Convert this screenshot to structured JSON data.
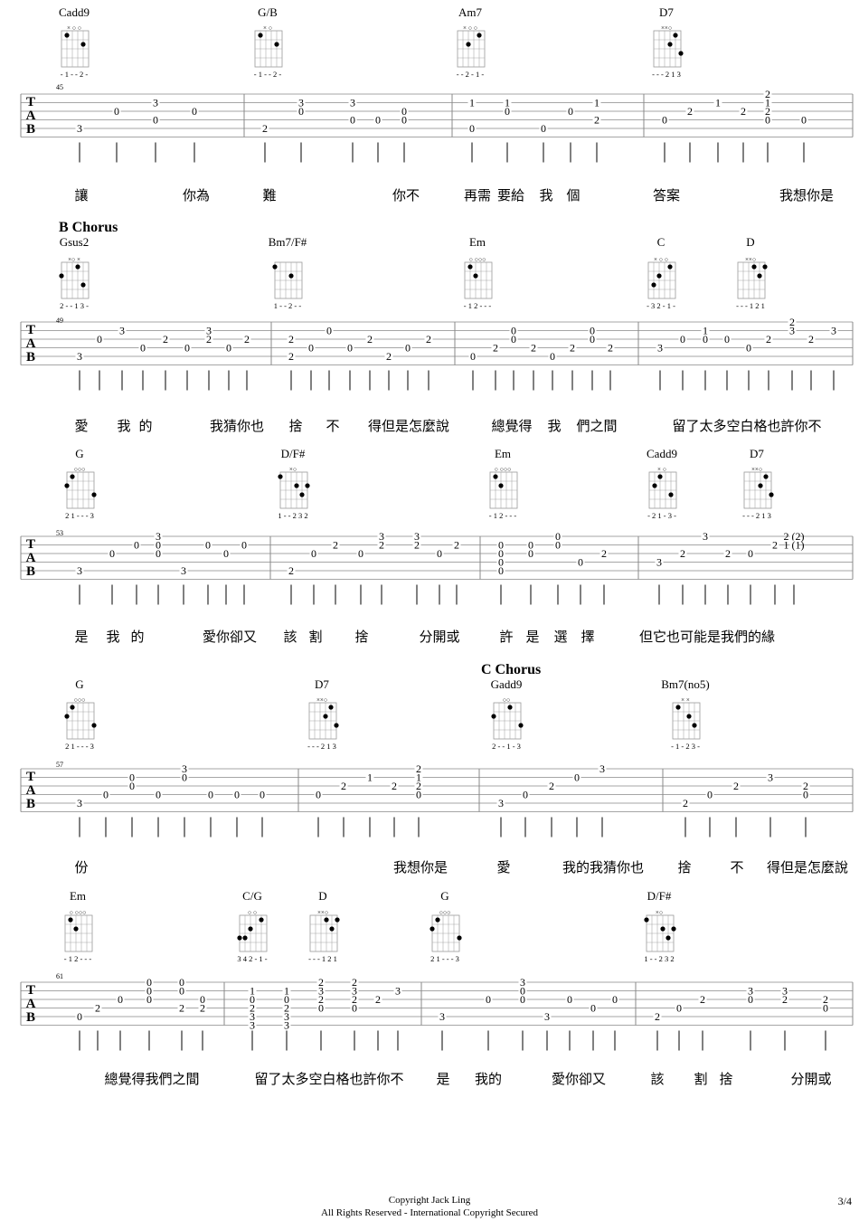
{
  "systems": [
    {
      "section": "",
      "measure_number": "45",
      "chords": [
        {
          "name": "Cadd9",
          "fingering": "- 1 - - 2 -",
          "top": "×   ○  ○"
        },
        {
          "name": "G/B",
          "fingering": "- 1 - - 2 -",
          "top": "×     ○"
        },
        {
          "name": "Am7",
          "fingering": "- - 2 - 1 -",
          "top": "×  ○   ○"
        },
        {
          "name": "D7",
          "fingering": "- - - 2 1 3",
          "top": "××○"
        }
      ],
      "lyrics": [
        "讓",
        "你為",
        "難",
        "你不",
        "再需",
        "要給",
        "我",
        "個",
        "答案",
        "我想你是"
      ],
      "tab": [
        {
          "s": 5,
          "v": "3"
        },
        {
          "s": 3,
          "v": "0"
        },
        {
          "s": 4,
          "v": "0"
        },
        {
          "s": 2,
          "v": "3"
        },
        {
          "s": 3,
          "v": "0"
        },
        {
          "s": 3,
          "v": "0"
        },
        {
          "s": 5,
          "v": "2"
        },
        {
          "s": 2,
          "v": "3"
        },
        {
          "s": 3,
          "v": "0"
        },
        {
          "s": 4,
          "v": "0"
        },
        {
          "s": 2,
          "v": "3"
        },
        {
          "s": 4,
          "v": "0"
        },
        {
          "s": 4,
          "v": "0"
        },
        {
          "s": 3,
          "v": "0"
        },
        {
          "s": 2,
          "v": "1"
        },
        {
          "s": 5,
          "v": "0"
        },
        {
          "s": 2,
          "v": "1"
        },
        {
          "s": 3,
          "v": "0"
        },
        {
          "s": 5,
          "v": "0"
        },
        {
          "s": 3,
          "v": "0"
        },
        {
          "s": 2,
          "v": "1"
        },
        {
          "s": 4,
          "v": "2"
        },
        {
          "s": 4,
          "v": "0"
        },
        {
          "s": 3,
          "v": "2"
        },
        {
          "s": 2,
          "v": "1"
        },
        {
          "s": 3,
          "v": "2"
        },
        {
          "s": 1,
          "v": "2"
        },
        {
          "s": 2,
          "v": "1"
        },
        {
          "s": 3,
          "v": "2"
        },
        {
          "s": 4,
          "v": "0"
        },
        {
          "s": 4,
          "v": "0"
        }
      ]
    },
    {
      "section": "B  Chorus",
      "measure_number": "49",
      "chords": [
        {
          "name": "Gsus2",
          "fingering": "2 - - 1 3 -",
          "top": "×○   ×"
        },
        {
          "name": "Bm7/F#",
          "fingering": "1 - - 2 - -",
          "top": ""
        },
        {
          "name": "Em",
          "fingering": "- 1 2 - - -",
          "top": "○     ○○○"
        },
        {
          "name": "C",
          "fingering": "- 3 2 - 1 -",
          "top": "×   ○  ○"
        },
        {
          "name": "D",
          "fingering": "- - - 1 2 1",
          "top": "××○"
        }
      ],
      "lyrics": [
        "愛",
        "我",
        "的",
        "我猜你也",
        "捨",
        "不",
        "得但是怎麼說",
        "總覺得",
        "我",
        "們之間",
        "留了太多空白格也許你不"
      ],
      "tab": [
        {
          "s": 5,
          "v": "3"
        },
        {
          "s": 2,
          "v": "3"
        },
        {
          "s": 3,
          "v": "0"
        },
        {
          "s": 4,
          "v": "0"
        },
        {
          "s": 3,
          "v": "0"
        },
        {
          "s": 3,
          "v": "2"
        },
        {
          "s": 4,
          "v": "0"
        },
        {
          "s": 2,
          "v": "3"
        },
        {
          "s": 3,
          "v": "2"
        },
        {
          "s": 4,
          "v": "0"
        },
        {
          "s": 3,
          "v": "2"
        },
        {
          "s": 3,
          "v": "2"
        },
        {
          "s": 5,
          "v": "2"
        },
        {
          "s": 4,
          "v": "0"
        },
        {
          "s": 2,
          "v": "0"
        },
        {
          "s": 4,
          "v": "0"
        },
        {
          "s": 3,
          "v": "2"
        },
        {
          "s": 5,
          "v": "2"
        },
        {
          "s": 4,
          "v": "0"
        },
        {
          "s": 3,
          "v": "2"
        },
        {
          "s": 5,
          "v": "0"
        },
        {
          "s": 4,
          "v": "2"
        },
        {
          "s": 2,
          "v": "0"
        },
        {
          "s": 3,
          "v": "0"
        },
        {
          "s": 4,
          "v": "2"
        },
        {
          "s": 5,
          "v": "0"
        },
        {
          "s": 4,
          "v": "2"
        },
        {
          "s": 2,
          "v": "0"
        },
        {
          "s": 3,
          "v": "0"
        },
        {
          "s": 4,
          "v": "2"
        },
        {
          "s": 4,
          "v": "3"
        },
        {
          "s": 3,
          "v": "0"
        },
        {
          "s": 2,
          "v": "1"
        },
        {
          "s": 3,
          "v": "0"
        },
        {
          "s": 3,
          "v": "0"
        },
        {
          "s": 4,
          "v": "0"
        },
        {
          "s": 3,
          "v": "2"
        },
        {
          "s": 1,
          "v": "2"
        },
        {
          "s": 2,
          "v": "3"
        },
        {
          "s": 3,
          "v": "2"
        },
        {
          "s": 2,
          "v": "3"
        }
      ]
    },
    {
      "section": "",
      "measure_number": "53",
      "chords": [
        {
          "name": "G",
          "fingering": "2 1 - - - 3",
          "top": "○○○"
        },
        {
          "name": "D/F#",
          "fingering": "1 - - 2 3 2",
          "top": "×○"
        },
        {
          "name": "Em",
          "fingering": "- 1 2 - - -",
          "top": "○     ○○○"
        },
        {
          "name": "Cadd9",
          "fingering": "- 2 1 - 3 -",
          "top": "×   ○"
        },
        {
          "name": "D7",
          "fingering": "- - - 2 1 3",
          "top": "××○"
        }
      ],
      "lyrics": [
        "是",
        "我",
        "的",
        "愛你卻又",
        "該",
        "割",
        "捨",
        "分開或",
        "許",
        "是",
        "選",
        "擇",
        "但它也可能是我們的緣"
      ],
      "tab": [
        {
          "s": 5,
          "v": "3"
        },
        {
          "s": 3,
          "v": "0"
        },
        {
          "s": 2,
          "v": "0"
        },
        {
          "s": 1,
          "v": "3"
        },
        {
          "s": 2,
          "v": "0"
        },
        {
          "s": 3,
          "v": "0"
        },
        {
          "s": 5,
          "v": "3"
        },
        {
          "s": 2,
          "v": "0"
        },
        {
          "s": 3,
          "v": "0"
        },
        {
          "s": 2,
          "v": "0"
        },
        {
          "s": 5,
          "v": "2"
        },
        {
          "s": 3,
          "v": "0"
        },
        {
          "s": 2,
          "v": "2"
        },
        {
          "s": 3,
          "v": "0"
        },
        {
          "s": 1,
          "v": "3"
        },
        {
          "s": 2,
          "v": "2"
        },
        {
          "s": 1,
          "v": "3"
        },
        {
          "s": 2,
          "v": "2"
        },
        {
          "s": 3,
          "v": "0"
        },
        {
          "s": 2,
          "v": "2"
        },
        {
          "s": 2,
          "v": "0"
        },
        {
          "s": 3,
          "v": "0"
        },
        {
          "s": 4,
          "v": "0"
        },
        {
          "s": 5,
          "v": "0"
        },
        {
          "s": 2,
          "v": "0"
        },
        {
          "s": 3,
          "v": "0"
        },
        {
          "s": 1,
          "v": "0"
        },
        {
          "s": 2,
          "v": "0"
        },
        {
          "s": 4,
          "v": "0"
        },
        {
          "s": 3,
          "v": "2"
        },
        {
          "s": 4,
          "v": "3"
        },
        {
          "s": 3,
          "v": "2"
        },
        {
          "s": 1,
          "v": "3"
        },
        {
          "s": 3,
          "v": "2"
        },
        {
          "s": 3,
          "v": "0"
        },
        {
          "s": 2,
          "v": "2"
        },
        {
          "s": 1,
          "v": "2 (2)"
        },
        {
          "s": 2,
          "v": "1 (1)"
        }
      ]
    },
    {
      "section": "C  Chorus",
      "measure_number": "57",
      "chords": [
        {
          "name": "G",
          "fingering": "2 1 - - - 3",
          "top": "○○○"
        },
        {
          "name": "D7",
          "fingering": "- - - 2 1 3",
          "top": "××○"
        },
        {
          "name": "Gadd9",
          "fingering": "2 - - 1 - 3",
          "top": "○○"
        },
        {
          "name": "Bm7(no5)",
          "fingering": "- 1 - 2 3 -",
          "top": "×  ×"
        }
      ],
      "lyrics": [
        "份",
        "我想你是",
        "愛",
        "我的我猜你也",
        "捨",
        "不",
        "得但是怎麼說"
      ],
      "tab": [
        {
          "s": 5,
          "v": "3"
        },
        {
          "s": 4,
          "v": "0"
        },
        {
          "s": 3,
          "v": "0"
        },
        {
          "s": 2,
          "v": "0"
        },
        {
          "s": 1,
          "v": "3"
        },
        {
          "s": 2,
          "v": "0"
        },
        {
          "s": 4,
          "v": "0"
        },
        {
          "s": 4,
          "v": "0"
        },
        {
          "s": 4,
          "v": "0"
        },
        {
          "s": 4,
          "v": "0"
        },
        {
          "s": 4,
          "v": "0"
        },
        {
          "s": 3,
          "v": "2"
        },
        {
          "s": 2,
          "v": "1"
        },
        {
          "s": 3,
          "v": "2"
        },
        {
          "s": 1,
          "v": "2"
        },
        {
          "s": 2,
          "v": "1"
        },
        {
          "s": 3,
          "v": "2"
        },
        {
          "s": 4,
          "v": "0"
        },
        {
          "s": 5,
          "v": "3"
        },
        {
          "s": 4,
          "v": "0"
        },
        {
          "s": 3,
          "v": "2"
        },
        {
          "s": 2,
          "v": "0"
        },
        {
          "s": 1,
          "v": "3"
        },
        {
          "s": 5,
          "v": "2"
        },
        {
          "s": 4,
          "v": "0"
        },
        {
          "s": 3,
          "v": "2"
        },
        {
          "s": 2,
          "v": "3"
        },
        {
          "s": 3,
          "v": "2"
        },
        {
          "s": 4,
          "v": "0"
        }
      ]
    },
    {
      "section": "",
      "measure_number": "61",
      "chords": [
        {
          "name": "Em",
          "fingering": "- 1 2 - - -",
          "top": "○     ○○○"
        },
        {
          "name": "C/G",
          "fingering": "3 4 2 - 1 -",
          "top": "○  ○"
        },
        {
          "name": "D",
          "fingering": "- - - 1 2 1",
          "top": "××○"
        },
        {
          "name": "G",
          "fingering": "2 1 - - - 3",
          "top": "○○○"
        },
        {
          "name": "D/F#",
          "fingering": "1 - - 2 3 2",
          "top": "×○"
        }
      ],
      "lyrics": [
        "總覺得我們之間",
        "留了太多空白格也許你不",
        "是",
        "我的",
        "愛你卻又",
        "該",
        "割",
        "捨",
        "分開或"
      ],
      "tab": [
        {
          "s": 5,
          "v": "0"
        },
        {
          "s": 4,
          "v": "2"
        },
        {
          "s": 3,
          "v": "0"
        },
        {
          "s": 1,
          "v": "0"
        },
        {
          "s": 2,
          "v": "0"
        },
        {
          "s": 3,
          "v": "0"
        },
        {
          "s": 4,
          "v": "2"
        },
        {
          "s": 1,
          "v": "0"
        },
        {
          "s": 2,
          "v": "0"
        },
        {
          "s": 3,
          "v": "0"
        },
        {
          "s": 4,
          "v": "2"
        },
        {
          "s": 3,
          "v": "0"
        },
        {
          "s": 2,
          "v": "1"
        },
        {
          "s": 3,
          "v": "0"
        },
        {
          "s": 4,
          "v": "2"
        },
        {
          "s": 5,
          "v": "3"
        },
        {
          "s": 6,
          "v": "3"
        },
        {
          "s": 2,
          "v": "1"
        },
        {
          "s": 3,
          "v": "0"
        },
        {
          "s": 4,
          "v": "2"
        },
        {
          "s": 5,
          "v": "3"
        },
        {
          "s": 6,
          "v": "3"
        },
        {
          "s": 1,
          "v": "2"
        },
        {
          "s": 2,
          "v": "3"
        },
        {
          "s": 3,
          "v": "2"
        },
        {
          "s": 4,
          "v": "0"
        },
        {
          "s": 1,
          "v": "2"
        },
        {
          "s": 2,
          "v": "3"
        },
        {
          "s": 3,
          "v": "2"
        },
        {
          "s": 4,
          "v": "0"
        },
        {
          "s": 3,
          "v": "2"
        },
        {
          "s": 2,
          "v": "3"
        },
        {
          "s": 5,
          "v": "3"
        },
        {
          "s": 3,
          "v": "0"
        },
        {
          "s": 1,
          "v": "3"
        },
        {
          "s": 2,
          "v": "0"
        },
        {
          "s": 3,
          "v": "0"
        },
        {
          "s": 5,
          "v": "3"
        },
        {
          "s": 3,
          "v": "0"
        },
        {
          "s": 3,
          "v": "0"
        },
        {
          "s": 4,
          "v": "0"
        },
        {
          "s": 3,
          "v": "0"
        },
        {
          "s": 5,
          "v": "2"
        },
        {
          "s": 4,
          "v": "0"
        },
        {
          "s": 3,
          "v": "2"
        },
        {
          "s": 3,
          "v": "0"
        },
        {
          "s": 2,
          "v": "3"
        },
        {
          "s": 3,
          "v": "2"
        },
        {
          "s": 2,
          "v": "3"
        },
        {
          "s": 3,
          "v": "2"
        },
        {
          "s": 4,
          "v": "0"
        },
        {
          "s": 3,
          "v": "2"
        }
      ]
    }
  ],
  "tab_clef": [
    "T",
    "A",
    "B"
  ],
  "footer": {
    "copyright": "Copyright Jack Ling",
    "rights": "All Rights Reserved - International Copyright Secured",
    "page": "3/4"
  }
}
